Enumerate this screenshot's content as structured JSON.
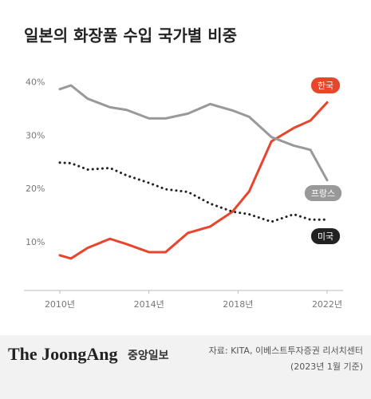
{
  "chart_data": {
    "type": "line",
    "title": "일본의 화장품 수입 국가별 비중",
    "x": [
      2010,
      2010.5,
      2011.25,
      2012.25,
      2013,
      2014,
      2014.75,
      2015.75,
      2016.75,
      2017.75,
      2018.5,
      2019.5,
      2020.5,
      2021.25,
      2022
    ],
    "xlim": [
      2010,
      2022
    ],
    "xticks": [
      {
        "value": 2010,
        "label": "2010년"
      },
      {
        "value": 2014,
        "label": "2014년"
      },
      {
        "value": 2018,
        "label": "2018년"
      },
      {
        "value": 2022,
        "label": "2022년"
      }
    ],
    "ylim": [
      1,
      41
    ],
    "yticks": [
      {
        "value": 10,
        "label": "10%"
      },
      {
        "value": 20,
        "label": "20%"
      },
      {
        "value": 30,
        "label": "30%"
      },
      {
        "value": 40,
        "label": "40%"
      }
    ],
    "grid": false,
    "series": [
      {
        "name": "한국",
        "color": "#e8452c",
        "style": "solid",
        "values": [
          7.6,
          7.0,
          9.0,
          10.7,
          9.7,
          8.2,
          8.2,
          11.8,
          13.0,
          15.8,
          19.6,
          29.0,
          31.5,
          32.9,
          36.3
        ]
      },
      {
        "name": "프랑스",
        "color": "#999999",
        "style": "solid",
        "values": [
          38.8,
          39.5,
          37.0,
          35.4,
          34.9,
          33.3,
          33.3,
          34.2,
          36.0,
          34.8,
          33.6,
          29.8,
          28.2,
          27.4,
          21.7
        ]
      },
      {
        "name": "미국",
        "color": "#222222",
        "style": "dotted",
        "values": [
          25.0,
          24.9,
          23.7,
          24.0,
          22.6,
          21.2,
          20.0,
          19.5,
          17.3,
          15.8,
          15.3,
          13.9,
          15.3,
          14.3,
          14.3
        ]
      }
    ]
  },
  "footer": {
    "brand": "The JoongAng",
    "brand_korean": "중앙일보",
    "source": "자료: KITA, 이베스트투자증권 리서치센터",
    "note": "(2023년 1월 기준)"
  }
}
